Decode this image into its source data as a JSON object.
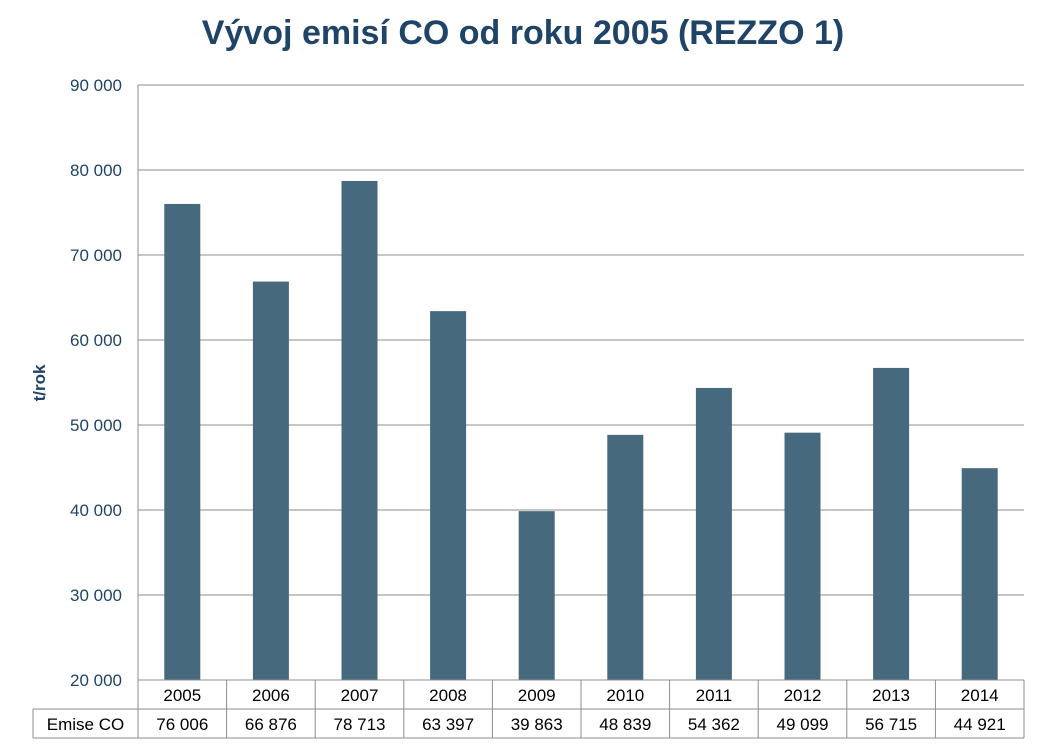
{
  "chart_data": {
    "type": "bar",
    "title": "Vývoj emisí CO od roku 2005 (REZZO 1)",
    "xlabel": "",
    "ylabel": "t/rok",
    "ylim": [
      20000,
      90000
    ],
    "yticks": [
      "20 000",
      "30 000",
      "40 000",
      "50 000",
      "60 000",
      "70 000",
      "80 000",
      "90 000"
    ],
    "ytick_values": [
      20000,
      30000,
      40000,
      50000,
      60000,
      70000,
      80000,
      90000
    ],
    "grid": true,
    "legend": "none",
    "bar_color": "#46697d",
    "categories": [
      "2005",
      "2006",
      "2007",
      "2008",
      "2009",
      "2010",
      "2011",
      "2012",
      "2013",
      "2014"
    ],
    "series": [
      {
        "name": "Emise CO",
        "values": [
          76006,
          66876,
          78713,
          63397,
          39863,
          48839,
          54362,
          49099,
          56715,
          44921
        ],
        "labels": [
          "76 006",
          "66 876",
          "78 713",
          "63 397",
          "39 863",
          "48 839",
          "54 362",
          "49 099",
          "56 715",
          "44 921"
        ]
      }
    ]
  }
}
